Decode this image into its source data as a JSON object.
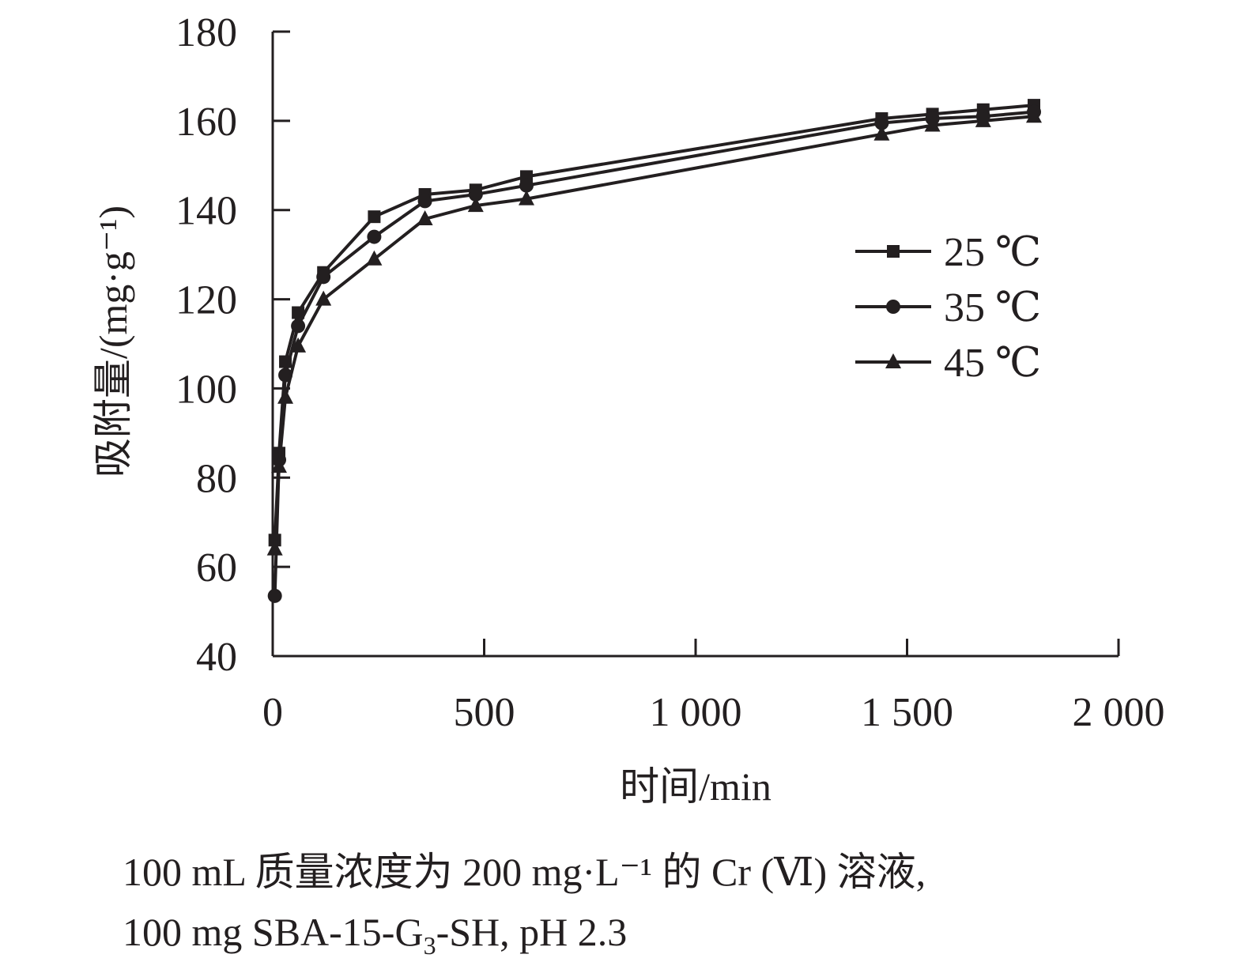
{
  "chart_data": {
    "type": "line",
    "xlabel": "时间/min",
    "ylabel": "吸附量/(mg·g⁻¹)",
    "xlim": [
      0,
      2000
    ],
    "ylim": [
      40,
      180
    ],
    "x_ticks": [
      0,
      500,
      1000,
      1500,
      2000
    ],
    "x_tick_labels": [
      "0",
      "500",
      "1 000",
      "1 500",
      "2 000"
    ],
    "y_ticks": [
      40,
      60,
      80,
      100,
      120,
      140,
      160,
      180
    ],
    "y_tick_labels": [
      "40",
      "60",
      "80",
      "100",
      "120",
      "140",
      "160",
      "180"
    ],
    "legend_position": "right",
    "grid": false,
    "x": [
      5,
      15,
      30,
      60,
      120,
      240,
      360,
      480,
      600,
      1440,
      1560,
      1680,
      1800
    ],
    "series": [
      {
        "name": "25 ℃",
        "marker": "square",
        "values": [
          66,
          85.5,
          106,
          117,
          126,
          138.5,
          143.5,
          144.5,
          147.5,
          160.5,
          161.5,
          162.5,
          163.5
        ]
      },
      {
        "name": "35 ℃",
        "marker": "circle",
        "values": [
          53.5,
          84,
          103,
          114,
          125,
          134,
          142,
          143.5,
          145.5,
          159.5,
          160.5,
          161,
          162
        ]
      },
      {
        "name": "45 ℃",
        "marker": "triangle",
        "values": [
          64,
          82.5,
          98,
          109.5,
          120,
          129,
          138,
          141,
          142.5,
          157,
          159,
          160,
          161
        ]
      }
    ]
  },
  "caption": {
    "line1": "100 mL 质量浓度为 200 mg·L⁻¹ 的 Cr (Ⅵ) 溶液,",
    "line2_part1": "100 mg SBA-15-G",
    "line2_sub": "3",
    "line2_part2": "-SH, pH 2.3"
  }
}
